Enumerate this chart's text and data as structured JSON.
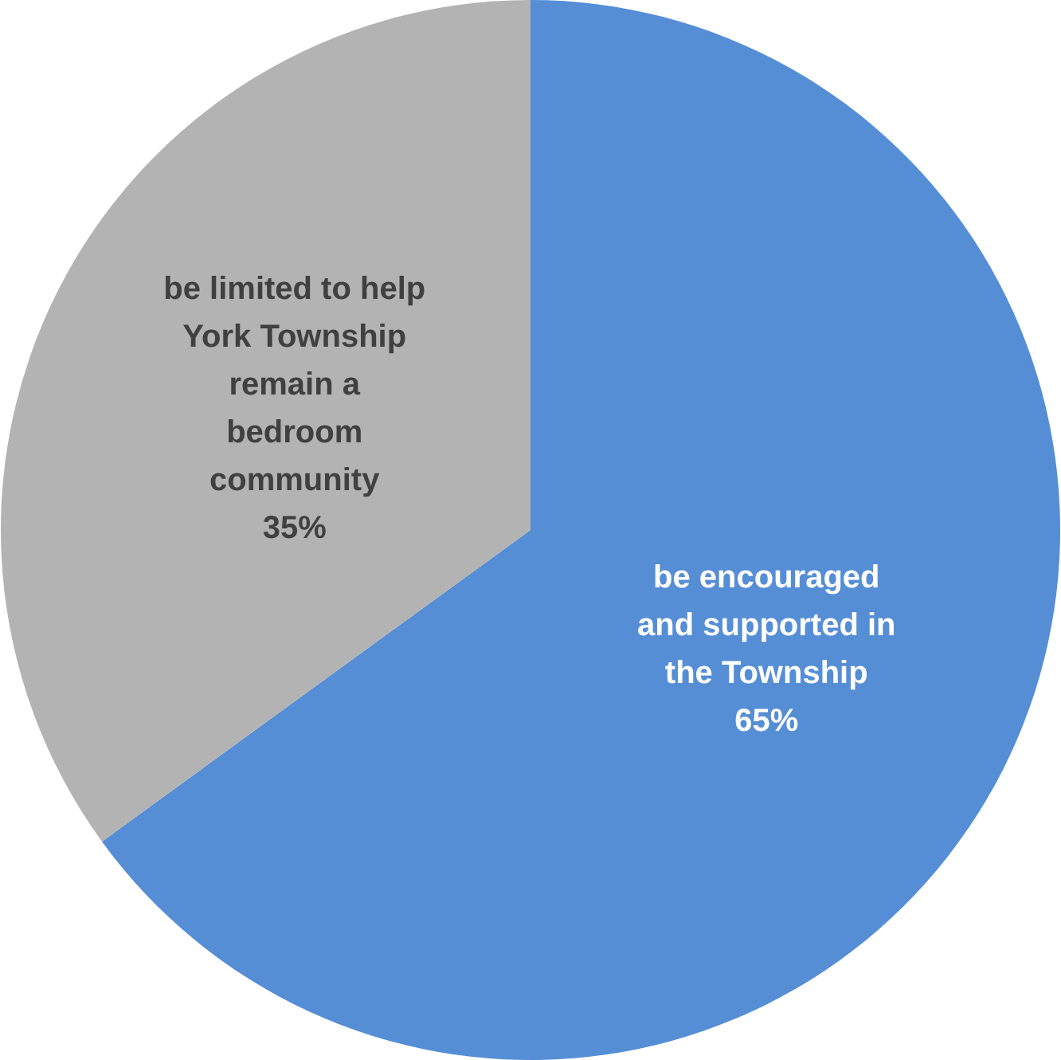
{
  "chart_data": {
    "type": "pie",
    "categories": [
      "be encouraged and supported in the Township",
      "be limited to help York Township remain a bedroom community"
    ],
    "values": [
      65,
      35
    ],
    "colors": [
      "#558ed5",
      "#b3b3b3"
    ],
    "value_labels": [
      "65%",
      "35%"
    ],
    "legend": false
  }
}
